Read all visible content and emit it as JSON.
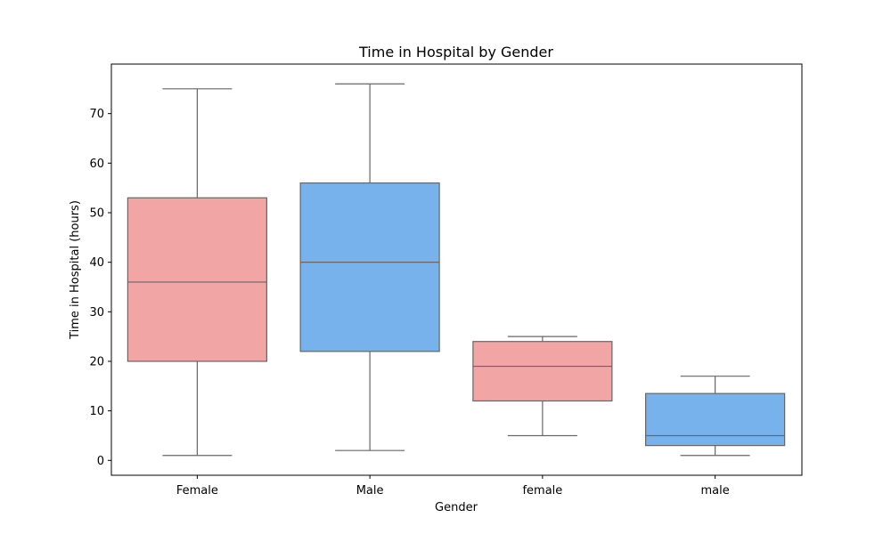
{
  "chart_data": {
    "type": "box",
    "title": "Time in Hospital by Gender",
    "xlabel": "Gender",
    "ylabel": "Time in Hospital (hours)",
    "categories": [
      "Female",
      "Male",
      "female",
      "male"
    ],
    "ylim": [
      -3,
      80
    ],
    "yticks": [
      0,
      10,
      20,
      30,
      40,
      50,
      60,
      70
    ],
    "boxes": [
      {
        "category": "Female",
        "min": 1,
        "q1": 20,
        "median": 36,
        "q3": 53,
        "max": 75,
        "color": "#f2a5a5"
      },
      {
        "category": "Male",
        "min": 2,
        "q1": 22,
        "median": 40,
        "q3": 56,
        "max": 76,
        "color": "#78b2ec"
      },
      {
        "category": "female",
        "min": 5,
        "q1": 12,
        "median": 19,
        "q3": 24,
        "max": 25,
        "color": "#f2a5a5"
      },
      {
        "category": "male",
        "min": 1,
        "q1": 3,
        "median": 5,
        "q3": 13.5,
        "max": 17,
        "color": "#78b2ec"
      }
    ],
    "line_color": "#666666",
    "grid": false,
    "legend": "none"
  }
}
